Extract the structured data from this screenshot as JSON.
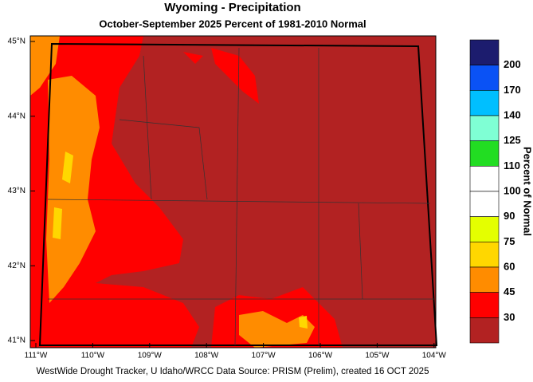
{
  "header": {
    "title": "Wyoming - Precipitation",
    "subtitle": "October-September 2025  Percent of 1981-2010 Normal"
  },
  "map": {
    "lat_labels": [
      "45°N",
      "44°N",
      "43°N",
      "42°N",
      "41°N"
    ],
    "lon_labels": [
      "111°W",
      "110°W",
      "109°W",
      "108°W",
      "107°W",
      "106°W",
      "105°W",
      "104°W"
    ]
  },
  "colorbar": {
    "title": "Percent of Normal",
    "labels": [
      "200",
      "170",
      "140",
      "125",
      "110",
      "100",
      "90",
      "75",
      "60",
      "45",
      "30"
    ],
    "colors": [
      "#1c1c6e",
      "#0a52f5",
      "#00bfff",
      "#7fffd4",
      "#22dd22",
      "#ffffff",
      "#ffffff",
      "#e4ff00",
      "#ffd700",
      "#ff8c00",
      "#ff0000",
      "#b22222"
    ]
  },
  "footer": "WestWide Drought Tracker, U Idaho/WRCC Data Source: PRISM (Prelim), created 16 OCT 2025"
}
